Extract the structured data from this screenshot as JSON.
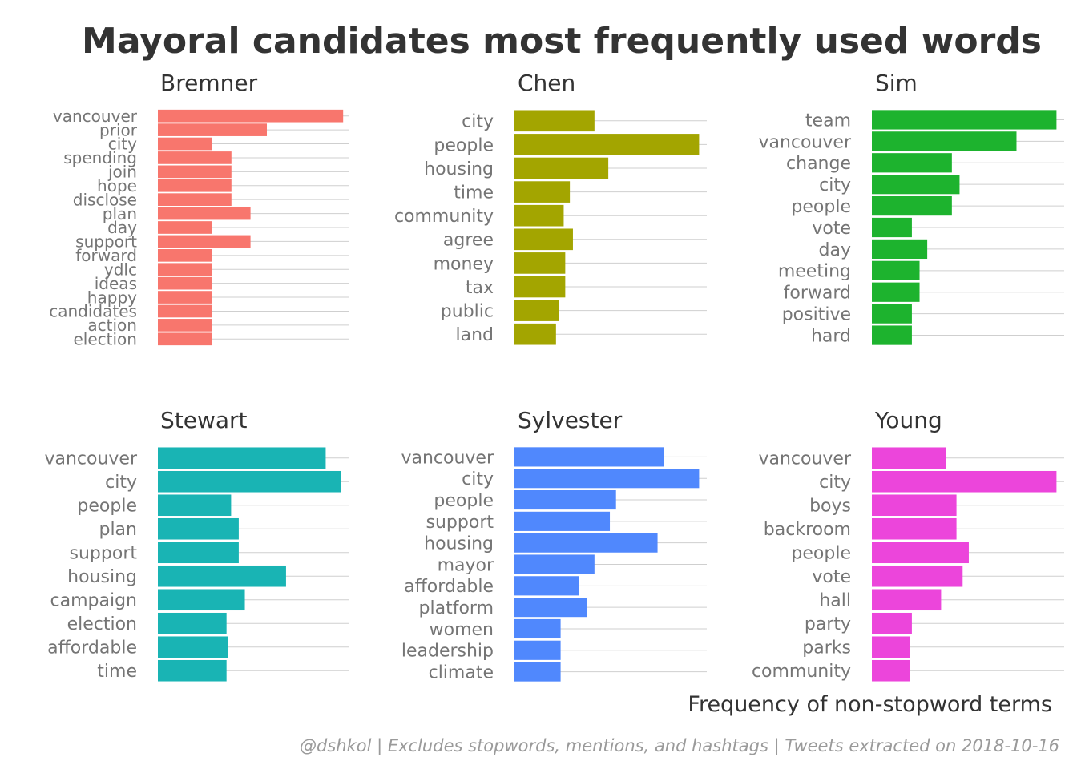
{
  "title": "Mayoral candidates most frequently used words",
  "xlabel": "Frequency of non-stopword terms",
  "caption": "@dshkol | Excludes stopwords, mentions, and hashtags | Tweets extracted on 2018-10-16",
  "chart_data": {
    "type": "bar",
    "orientation": "horizontal",
    "layout": "facets 3 columns x 2 rows, free scales",
    "grid": "horizontal major lines only",
    "facets": [
      {
        "name": "Bremner",
        "color": "#F8766D",
        "xmax": 35,
        "categories": [
          "vancouver",
          "prior",
          "city",
          "spending",
          "join",
          "hope",
          "disclose",
          "plan",
          "day",
          "support",
          "forward",
          "ydlc",
          "ideas",
          "happy",
          "candidates",
          "action",
          "election"
        ],
        "values": [
          34,
          20,
          10,
          13.5,
          13.5,
          13.5,
          13.5,
          17,
          10,
          17,
          10,
          10,
          10,
          10,
          10,
          10,
          10
        ]
      },
      {
        "name": "Chen",
        "color": "#A3A500",
        "xmax": 12.5,
        "categories": [
          "city",
          "people",
          "housing",
          "time",
          "community",
          "agree",
          "money",
          "tax",
          "public",
          "land"
        ],
        "values": [
          5.2,
          12,
          6.1,
          3.6,
          3.2,
          3.8,
          3.3,
          3.3,
          2.9,
          2.7
        ]
      },
      {
        "name": "Sim",
        "color": "#1DB32E",
        "xmax": 12.5,
        "categories": [
          "team",
          "vancouver",
          "change",
          "city",
          "people",
          "vote",
          "day",
          "meeting",
          "forward",
          "positive",
          "hard"
        ],
        "values": [
          12,
          9.4,
          5.2,
          5.7,
          5.2,
          2.6,
          3.6,
          3.1,
          3.1,
          2.6,
          2.6
        ]
      },
      {
        "name": "Stewart",
        "color": "#19B4B4",
        "xmax": 12.5,
        "categories": [
          "vancouver",
          "city",
          "people",
          "plan",
          "support",
          "housing",
          "campaign",
          "election",
          "affordable",
          "time"
        ],
        "values": [
          11,
          12,
          4.8,
          5.3,
          5.3,
          8.4,
          5.7,
          4.5,
          4.6,
          4.5
        ]
      },
      {
        "name": "Sylvester",
        "color": "#5088FD",
        "xmax": 12.5,
        "categories": [
          "vancouver",
          "city",
          "people",
          "support",
          "housing",
          "mayor",
          "affordable",
          "platform",
          "women",
          "leadership",
          "climate"
        ],
        "values": [
          9.7,
          12,
          6.6,
          6.2,
          9.3,
          5.2,
          4.2,
          4.7,
          3,
          3,
          3
        ]
      },
      {
        "name": "Young",
        "color": "#EC45DB",
        "xmax": 12.5,
        "categories": [
          "vancouver",
          "city",
          "boys",
          "backroom",
          "people",
          "vote",
          "hall",
          "party",
          "parks",
          "community"
        ],
        "values": [
          4.8,
          12,
          5.5,
          5.5,
          6.3,
          5.9,
          4.5,
          2.6,
          2.5,
          2.5
        ]
      }
    ]
  }
}
